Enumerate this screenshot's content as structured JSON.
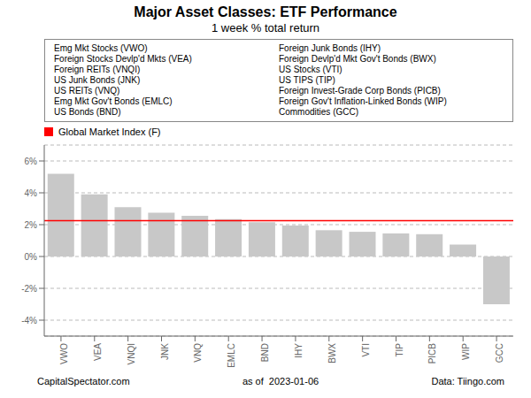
{
  "chart_data": {
    "type": "bar",
    "title": "Major Asset Classes: ETF Performance",
    "subtitle": "1 week % total return",
    "categories": [
      "VWO",
      "VEA",
      "VNQI",
      "JNK",
      "VNQ",
      "EMLC",
      "BND",
      "IHY",
      "BWX",
      "VTI",
      "TIP",
      "PICB",
      "WIP",
      "GCC"
    ],
    "values": [
      5.2,
      3.9,
      3.1,
      2.75,
      2.55,
      2.35,
      2.15,
      1.95,
      1.65,
      1.55,
      1.45,
      1.4,
      0.75,
      -3.0
    ],
    "color": "#c8c8c8",
    "ylim": [
      -5,
      7
    ],
    "yticks": [
      {
        "value": -4,
        "label": "-4%"
      },
      {
        "value": -2,
        "label": "-2%"
      },
      {
        "value": 0,
        "label": "0%"
      },
      {
        "value": 2,
        "label": "2%"
      },
      {
        "value": 4,
        "label": "4%"
      },
      {
        "value": 6,
        "label": "6%"
      }
    ],
    "grid": true,
    "reference_line": {
      "value": 2.25,
      "label": "Global Market Index (F)",
      "color": "#ff0000"
    },
    "annotations": [
      "Emg Mkt Stocks (VWO)",
      "Foreign Stocks Devlp'd Mkts (VEA)",
      "Foreign REITs (VNQI)",
      "US Junk Bonds (JNK)",
      "US REITs (VNQ)",
      "Emg Mkt Gov't Bonds (EMLC)",
      "US Bonds (BND)",
      "Foreign Junk Bonds (IHY)",
      "Foreign Devlp'd Mkt Gov't Bonds (BWX)",
      "US Stocks (VTI)",
      "US TIPS (TIP)",
      "Foreign Invest-Grade Corp Bonds (PICB)",
      "Foreign Gov't Inflation-Linked Bonds (WIP)",
      "Commodities (GCC)"
    ],
    "footer": [
      "CapitalSpectator.com",
      "as of  2023-01-06",
      "Data: Tiingo.com"
    ]
  }
}
